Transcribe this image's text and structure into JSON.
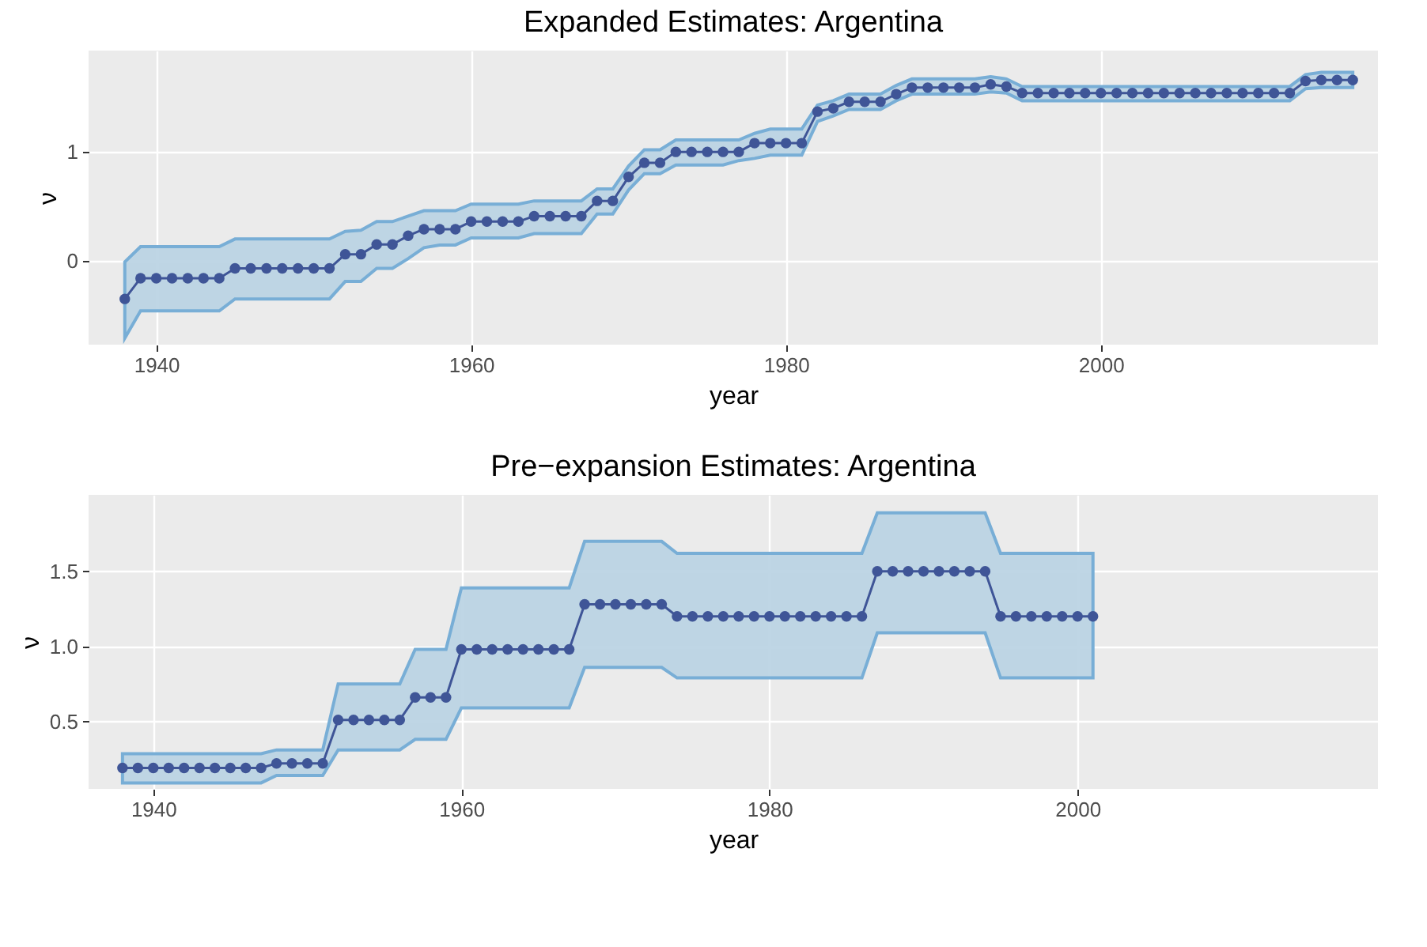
{
  "chart_data": [
    {
      "type": "line",
      "title": "Expanded Estimates: Argentina",
      "xlabel": "year",
      "ylabel": "ν",
      "xlim": [
        1935.7,
        2017.6
      ],
      "ylim": [
        -0.77,
        1.93
      ],
      "xticks": [
        1940,
        1960,
        1980,
        2000
      ],
      "yticks": [
        0,
        1
      ],
      "grid": true,
      "marker": "circle",
      "line_style": "solid",
      "x": [
        1938,
        1939,
        1940,
        1941,
        1942,
        1943,
        1944,
        1945,
        1946,
        1947,
        1948,
        1949,
        1950,
        1951,
        1952,
        1953,
        1954,
        1955,
        1956,
        1957,
        1958,
        1959,
        1960,
        1961,
        1962,
        1963,
        1964,
        1965,
        1966,
        1967,
        1968,
        1969,
        1970,
        1971,
        1972,
        1973,
        1974,
        1975,
        1976,
        1977,
        1978,
        1979,
        1980,
        1981,
        1982,
        1983,
        1984,
        1985,
        1986,
        1987,
        1988,
        1989,
        1990,
        1991,
        1992,
        1993,
        1994,
        1995,
        1996,
        1997,
        1998,
        1999,
        2000,
        2001,
        2002,
        2003,
        2004,
        2005,
        2006,
        2007,
        2008,
        2009,
        2010,
        2011,
        2012,
        2013,
        2014,
        2015,
        2016
      ],
      "series": [
        {
          "color": "#3f5597",
          "values": [
            -0.35,
            -0.16,
            -0.16,
            -0.16,
            -0.16,
            -0.16,
            -0.16,
            -0.07,
            -0.07,
            -0.07,
            -0.07,
            -0.07,
            -0.07,
            -0.07,
            0.06,
            0.06,
            0.15,
            0.15,
            0.23,
            0.29,
            0.29,
            0.29,
            0.36,
            0.36,
            0.36,
            0.36,
            0.41,
            0.41,
            0.41,
            0.41,
            0.55,
            0.55,
            0.77,
            0.9,
            0.9,
            1.0,
            1.0,
            1.0,
            1.0,
            1.0,
            1.08,
            1.08,
            1.08,
            1.08,
            1.37,
            1.4,
            1.46,
            1.46,
            1.46,
            1.53,
            1.59,
            1.59,
            1.59,
            1.59,
            1.59,
            1.62,
            1.6,
            1.54,
            1.54,
            1.54,
            1.54,
            1.54,
            1.54,
            1.54,
            1.54,
            1.54,
            1.54,
            1.54,
            1.54,
            1.54,
            1.54,
            1.54,
            1.54,
            1.54,
            1.54,
            1.65,
            1.66,
            1.66,
            1.66
          ],
          "lower": [
            -0.71,
            -0.46,
            -0.46,
            -0.46,
            -0.46,
            -0.46,
            -0.46,
            -0.35,
            -0.35,
            -0.35,
            -0.35,
            -0.35,
            -0.35,
            -0.35,
            -0.19,
            -0.19,
            -0.07,
            -0.07,
            0.02,
            0.12,
            0.145,
            0.145,
            0.21,
            0.21,
            0.21,
            0.21,
            0.25,
            0.25,
            0.25,
            0.25,
            0.43,
            0.43,
            0.65,
            0.8,
            0.8,
            0.88,
            0.88,
            0.88,
            0.88,
            0.92,
            0.94,
            0.97,
            0.97,
            0.97,
            1.28,
            1.33,
            1.39,
            1.39,
            1.39,
            1.47,
            1.53,
            1.53,
            1.53,
            1.53,
            1.53,
            1.55,
            1.54,
            1.47,
            1.47,
            1.47,
            1.47,
            1.47,
            1.47,
            1.47,
            1.47,
            1.47,
            1.47,
            1.47,
            1.47,
            1.47,
            1.47,
            1.47,
            1.47,
            1.47,
            1.47,
            1.58,
            1.59,
            1.59,
            1.59
          ],
          "upper": [
            -0.01,
            0.13,
            0.13,
            0.13,
            0.13,
            0.13,
            0.13,
            0.2,
            0.2,
            0.2,
            0.2,
            0.2,
            0.2,
            0.2,
            0.27,
            0.28,
            0.36,
            0.36,
            0.41,
            0.46,
            0.46,
            0.46,
            0.52,
            0.52,
            0.52,
            0.52,
            0.55,
            0.55,
            0.55,
            0.55,
            0.66,
            0.66,
            0.87,
            1.02,
            1.02,
            1.11,
            1.11,
            1.11,
            1.11,
            1.11,
            1.17,
            1.21,
            1.21,
            1.21,
            1.43,
            1.47,
            1.53,
            1.53,
            1.53,
            1.61,
            1.67,
            1.67,
            1.67,
            1.67,
            1.67,
            1.69,
            1.67,
            1.6,
            1.6,
            1.6,
            1.6,
            1.6,
            1.6,
            1.6,
            1.6,
            1.6,
            1.6,
            1.6,
            1.6,
            1.6,
            1.6,
            1.6,
            1.6,
            1.6,
            1.6,
            1.71,
            1.73,
            1.73,
            1.73
          ]
        }
      ]
    },
    {
      "type": "line",
      "title": "Pre−expansion Estimates: Argentina",
      "xlabel": "year",
      "ylabel": "ν",
      "xlim": [
        1935.8,
        2019.5
      ],
      "ylim": [
        0.05,
        2.01
      ],
      "xticks": [
        1940,
        1960,
        1980,
        2000
      ],
      "yticks": [
        0.5,
        {
          "value": 1,
          "label": "1.0"
        },
        1.5
      ],
      "grid": true,
      "marker": "circle",
      "line_style": "solid",
      "x": [
        1938,
        1939,
        1940,
        1941,
        1942,
        1943,
        1944,
        1945,
        1946,
        1947,
        1948,
        1949,
        1950,
        1951,
        1952,
        1953,
        1954,
        1955,
        1956,
        1957,
        1958,
        1959,
        1960,
        1961,
        1962,
        1963,
        1964,
        1965,
        1966,
        1967,
        1968,
        1969,
        1970,
        1971,
        1972,
        1973,
        1974,
        1975,
        1976,
        1977,
        1978,
        1979,
        1980,
        1981,
        1982,
        1983,
        1984,
        1985,
        1986,
        1987,
        1988,
        1989,
        1990,
        1991,
        1992,
        1993,
        1994,
        1995,
        1996,
        1997,
        1998,
        1999,
        2000,
        2001
      ],
      "series": [
        {
          "color": "#3f5597",
          "values": [
            0.19,
            0.19,
            0.19,
            0.19,
            0.19,
            0.19,
            0.19,
            0.19,
            0.19,
            0.19,
            0.22,
            0.22,
            0.22,
            0.22,
            0.51,
            0.51,
            0.51,
            0.51,
            0.51,
            0.66,
            0.66,
            0.66,
            0.98,
            0.98,
            0.98,
            0.98,
            0.98,
            0.98,
            0.98,
            0.98,
            1.28,
            1.28,
            1.28,
            1.28,
            1.28,
            1.28,
            1.2,
            1.2,
            1.2,
            1.2,
            1.2,
            1.2,
            1.2,
            1.2,
            1.2,
            1.2,
            1.2,
            1.2,
            1.2,
            1.5,
            1.5,
            1.5,
            1.5,
            1.5,
            1.5,
            1.5,
            1.5,
            1.2,
            1.2,
            1.2,
            1.2,
            1.2,
            1.2,
            1.2
          ],
          "lower": [
            0.09,
            0.09,
            0.09,
            0.09,
            0.09,
            0.09,
            0.09,
            0.09,
            0.09,
            0.09,
            0.14,
            0.14,
            0.14,
            0.14,
            0.31,
            0.31,
            0.31,
            0.31,
            0.31,
            0.38,
            0.38,
            0.38,
            0.59,
            0.59,
            0.59,
            0.59,
            0.59,
            0.59,
            0.59,
            0.59,
            0.86,
            0.86,
            0.86,
            0.86,
            0.86,
            0.86,
            0.79,
            0.79,
            0.79,
            0.79,
            0.79,
            0.79,
            0.79,
            0.79,
            0.79,
            0.79,
            0.79,
            0.79,
            0.79,
            1.09,
            1.09,
            1.09,
            1.09,
            1.09,
            1.09,
            1.09,
            1.09,
            0.79,
            0.79,
            0.79,
            0.79,
            0.79,
            0.79,
            0.79
          ],
          "upper": [
            0.285,
            0.285,
            0.285,
            0.285,
            0.285,
            0.285,
            0.285,
            0.285,
            0.285,
            0.285,
            0.31,
            0.31,
            0.31,
            0.31,
            0.75,
            0.75,
            0.75,
            0.75,
            0.75,
            0.98,
            0.98,
            0.98,
            1.39,
            1.39,
            1.39,
            1.39,
            1.39,
            1.39,
            1.39,
            1.39,
            1.7,
            1.7,
            1.7,
            1.7,
            1.7,
            1.7,
            1.62,
            1.62,
            1.62,
            1.62,
            1.62,
            1.62,
            1.62,
            1.62,
            1.62,
            1.62,
            1.62,
            1.62,
            1.62,
            1.89,
            1.89,
            1.89,
            1.89,
            1.89,
            1.89,
            1.89,
            1.89,
            1.62,
            1.62,
            1.62,
            1.62,
            1.62,
            1.62,
            1.62
          ]
        }
      ]
    }
  ]
}
